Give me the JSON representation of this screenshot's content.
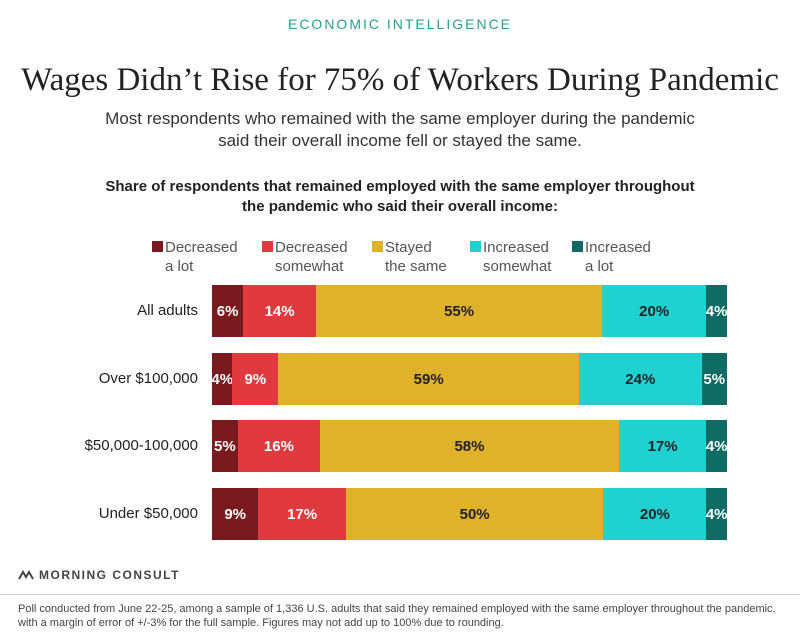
{
  "header": {
    "kicker": "ECONOMIC INTELLIGENCE",
    "title": "Wages Didn’t Rise for 75% of Workers During Pandemic",
    "subtitle": "Most respondents who remained with the same employer during the pandemic said their overall income fell or stayed the same.",
    "chart_subtitle": "Share of respondents that remained employed with the same employer throughout the pandemic who said their overall income:"
  },
  "legend": [
    {
      "label": "Decreased\na lot",
      "color": "#7b1a1e"
    },
    {
      "label": "Decreased\nsomewhat",
      "color": "#e0393e"
    },
    {
      "label": "Stayed\nthe same",
      "color": "#e0b12b"
    },
    {
      "label": "Increased\nsomewhat",
      "color": "#1fd1d1"
    },
    {
      "label": "Increased\na lot",
      "color": "#0f6b64"
    }
  ],
  "chart_data": {
    "type": "bar",
    "orientation": "horizontal-stacked-100",
    "categories": [
      "All adults",
      "Over $100,000",
      "$50,000-100,000",
      "Under $50,000"
    ],
    "series": [
      {
        "name": "Decreased a lot",
        "values": [
          6,
          4,
          5,
          9
        ],
        "labels": [
          "6%",
          "4%",
          "5%",
          "9%"
        ],
        "color": "#7b1a1e",
        "text_color": "#ffffff"
      },
      {
        "name": "Decreased somewhat",
        "values": [
          14,
          9,
          16,
          17
        ],
        "labels": [
          "14%",
          "9%",
          "16%",
          "17%"
        ],
        "color": "#e0393e",
        "text_color": "#ffffff"
      },
      {
        "name": "Stayed the same",
        "values": [
          55,
          59,
          58,
          50
        ],
        "labels": [
          "55%",
          "59%",
          "58%",
          "50%"
        ],
        "color": "#e0b12b",
        "text_color": "#222222"
      },
      {
        "name": "Increased somewhat",
        "values": [
          20,
          24,
          17,
          20
        ],
        "labels": [
          "20%",
          "24%",
          "17%",
          "20%"
        ],
        "color": "#1fd1d1",
        "text_color": "#222222"
      },
      {
        "name": "Increased a lot",
        "values": [
          4,
          5,
          4,
          4
        ],
        "labels": [
          "4%",
          "5%",
          "4%",
          "4%"
        ],
        "color": "#0f6b64",
        "text_color": "#ffffff"
      }
    ],
    "unit": "%"
  },
  "footer": {
    "brand": "MORNING CONSULT",
    "note": "Poll conducted from June 22-25, among a sample of 1,336 U.S. adults that said they remained employed with the same employer throughout the pandemic, with a margin of error of +/-3% for the full sample. Figures may not add up to 100% due to rounding."
  }
}
